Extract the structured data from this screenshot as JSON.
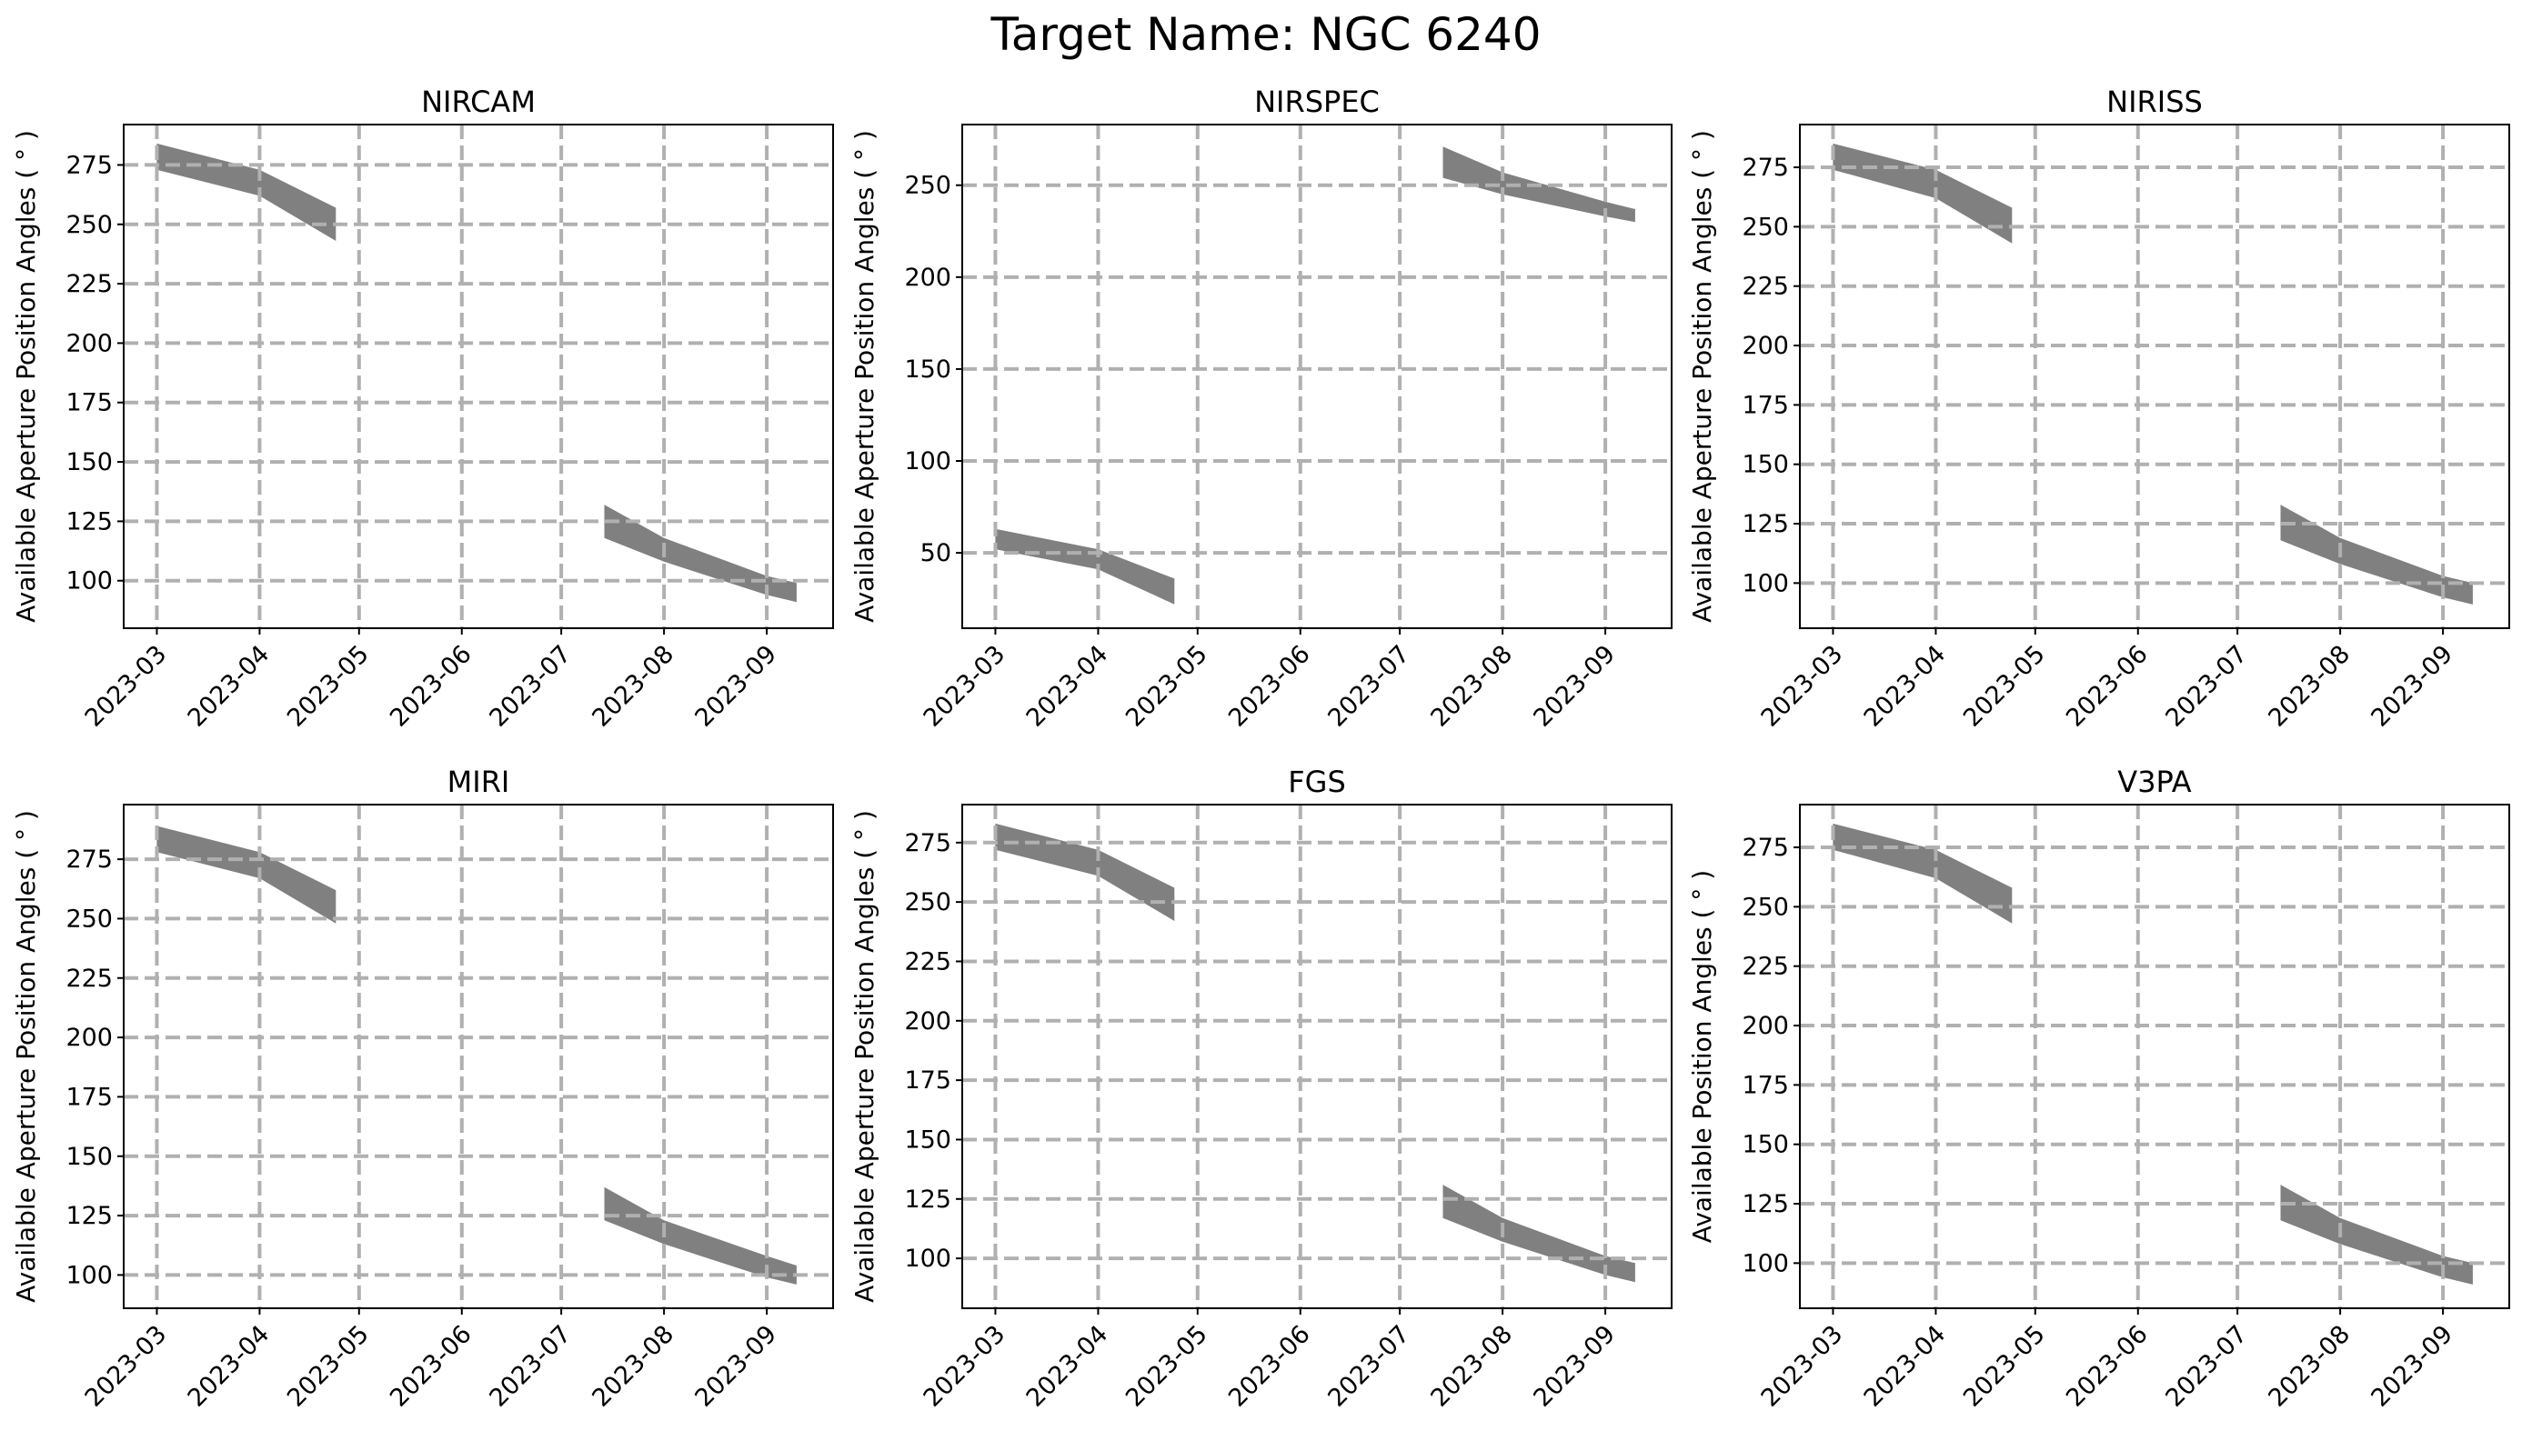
{
  "figure": {
    "title": "Target Name: NGC 6240"
  },
  "style": {
    "band_color": "#808080",
    "grid_color": "#b0b0b0",
    "axis_color": "#000000"
  },
  "chart_data": [
    {
      "type": "area",
      "title": "NIRCAM",
      "xlabel": "",
      "ylabel": "Available Aperture Position Angles ( $^\\circ$ )",
      "xticks": [
        "2023-03",
        "2023-04",
        "2023-05",
        "2023-06",
        "2023-07",
        "2023-08",
        "2023-09"
      ],
      "xlim": [
        "2023-02-19",
        "2023-09-21"
      ],
      "yticks": [
        100,
        125,
        150,
        175,
        200,
        225,
        250,
        275
      ],
      "ylim": [
        80,
        292
      ],
      "grid": true,
      "series": [
        {
          "low": [
            [
              "2023-03-01",
              273
            ],
            [
              "2023-04-01",
              262
            ],
            [
              "2023-04-24",
              243
            ]
          ],
          "high": [
            [
              "2023-03-01",
              284
            ],
            [
              "2023-04-01",
              273
            ],
            [
              "2023-04-24",
              257
            ]
          ]
        },
        {
          "low": [
            [
              "2023-07-14",
              118
            ],
            [
              "2023-08-01",
              108
            ],
            [
              "2023-09-01",
              94
            ],
            [
              "2023-09-10",
              91
            ]
          ],
          "high": [
            [
              "2023-07-14",
              132
            ],
            [
              "2023-08-01",
              118
            ],
            [
              "2023-09-01",
              102
            ],
            [
              "2023-09-10",
              99
            ]
          ]
        }
      ]
    },
    {
      "type": "area",
      "title": "NIRSPEC",
      "xlabel": "",
      "ylabel": "Available Aperture Position Angles ( $^\\circ$ )",
      "xticks": [
        "2023-03",
        "2023-04",
        "2023-05",
        "2023-06",
        "2023-07",
        "2023-08",
        "2023-09"
      ],
      "xlim": [
        "2023-02-19",
        "2023-09-21"
      ],
      "yticks": [
        50,
        100,
        150,
        200,
        250
      ],
      "ylim": [
        9,
        283
      ],
      "grid": true,
      "series": [
        {
          "low": [
            [
              "2023-03-01",
              52
            ],
            [
              "2023-04-01",
              41
            ],
            [
              "2023-04-24",
              22
            ]
          ],
          "high": [
            [
              "2023-03-01",
              63
            ],
            [
              "2023-04-01",
              52
            ],
            [
              "2023-04-24",
              36
            ]
          ]
        },
        {
          "low": [
            [
              "2023-07-14",
              254
            ],
            [
              "2023-08-01",
              245
            ],
            [
              "2023-09-01",
              233
            ],
            [
              "2023-09-10",
              230
            ]
          ],
          "high": [
            [
              "2023-07-14",
              271
            ],
            [
              "2023-08-01",
              257
            ],
            [
              "2023-09-01",
              241
            ],
            [
              "2023-09-10",
              237
            ]
          ]
        }
      ]
    },
    {
      "type": "area",
      "title": "NIRISS",
      "xlabel": "",
      "ylabel": "Available Aperture Position Angles ( $^\\circ$ )",
      "xticks": [
        "2023-03",
        "2023-04",
        "2023-05",
        "2023-06",
        "2023-07",
        "2023-08",
        "2023-09"
      ],
      "xlim": [
        "2023-02-19",
        "2023-09-21"
      ],
      "yticks": [
        100,
        125,
        150,
        175,
        200,
        225,
        250,
        275
      ],
      "ylim": [
        81,
        293
      ],
      "grid": true,
      "series": [
        {
          "low": [
            [
              "2023-03-01",
              274
            ],
            [
              "2023-04-01",
              262
            ],
            [
              "2023-04-24",
              243
            ]
          ],
          "high": [
            [
              "2023-03-01",
              285
            ],
            [
              "2023-04-01",
              274
            ],
            [
              "2023-04-24",
              258
            ]
          ]
        },
        {
          "low": [
            [
              "2023-07-14",
              118
            ],
            [
              "2023-08-01",
              108
            ],
            [
              "2023-09-01",
              94
            ],
            [
              "2023-09-10",
              91
            ]
          ],
          "high": [
            [
              "2023-07-14",
              133
            ],
            [
              "2023-08-01",
              119
            ],
            [
              "2023-09-01",
              103
            ],
            [
              "2023-09-10",
              100
            ]
          ]
        }
      ]
    },
    {
      "type": "area",
      "title": "MIRI",
      "xlabel": "",
      "ylabel": "Available Aperture Position Angles ( $^\\circ$ )",
      "xticks": [
        "2023-03",
        "2023-04",
        "2023-05",
        "2023-06",
        "2023-07",
        "2023-08",
        "2023-09"
      ],
      "xlim": [
        "2023-02-19",
        "2023-09-21"
      ],
      "yticks": [
        100,
        125,
        150,
        175,
        200,
        225,
        250,
        275
      ],
      "ylim": [
        86,
        298
      ],
      "grid": true,
      "series": [
        {
          "low": [
            [
              "2023-03-01",
              278
            ],
            [
              "2023-04-01",
              267
            ],
            [
              "2023-04-24",
              248
            ]
          ],
          "high": [
            [
              "2023-03-01",
              289
            ],
            [
              "2023-04-01",
              278
            ],
            [
              "2023-04-24",
              262
            ]
          ]
        },
        {
          "low": [
            [
              "2023-07-14",
              123
            ],
            [
              "2023-08-01",
              113
            ],
            [
              "2023-09-01",
              99
            ],
            [
              "2023-09-10",
              96
            ]
          ],
          "high": [
            [
              "2023-07-14",
              137
            ],
            [
              "2023-08-01",
              123
            ],
            [
              "2023-09-01",
              108
            ],
            [
              "2023-09-10",
              104
            ]
          ]
        }
      ]
    },
    {
      "type": "area",
      "title": "FGS",
      "xlabel": "",
      "ylabel": "Available Aperture Position Angles ( $^\\circ$ )",
      "xticks": [
        "2023-03",
        "2023-04",
        "2023-05",
        "2023-06",
        "2023-07",
        "2023-08",
        "2023-09"
      ],
      "xlim": [
        "2023-02-19",
        "2023-09-21"
      ],
      "yticks": [
        100,
        125,
        150,
        175,
        200,
        225,
        250,
        275
      ],
      "ylim": [
        79,
        291
      ],
      "grid": true,
      "series": [
        {
          "low": [
            [
              "2023-03-01",
              272
            ],
            [
              "2023-04-01",
              261
            ],
            [
              "2023-04-24",
              242
            ]
          ],
          "high": [
            [
              "2023-03-01",
              283
            ],
            [
              "2023-04-01",
              272
            ],
            [
              "2023-04-24",
              256
            ]
          ]
        },
        {
          "low": [
            [
              "2023-07-14",
              117
            ],
            [
              "2023-08-01",
              107
            ],
            [
              "2023-09-01",
              93
            ],
            [
              "2023-09-10",
              90
            ]
          ],
          "high": [
            [
              "2023-07-14",
              131
            ],
            [
              "2023-08-01",
              117
            ],
            [
              "2023-09-01",
              101
            ],
            [
              "2023-09-10",
              98
            ]
          ]
        }
      ]
    },
    {
      "type": "area",
      "title": "V3PA",
      "xlabel": "",
      "ylabel": "Available Position Angles ( $^\\circ$ )",
      "xticks": [
        "2023-03",
        "2023-04",
        "2023-05",
        "2023-06",
        "2023-07",
        "2023-08",
        "2023-09"
      ],
      "xlim": [
        "2023-02-19",
        "2023-09-21"
      ],
      "yticks": [
        100,
        125,
        150,
        175,
        200,
        225,
        250,
        275
      ],
      "ylim": [
        81,
        293
      ],
      "grid": true,
      "series": [
        {
          "low": [
            [
              "2023-03-01",
              274
            ],
            [
              "2023-04-01",
              262
            ],
            [
              "2023-04-24",
              243
            ]
          ],
          "high": [
            [
              "2023-03-01",
              285
            ],
            [
              "2023-04-01",
              274
            ],
            [
              "2023-04-24",
              258
            ]
          ]
        },
        {
          "low": [
            [
              "2023-07-14",
              118
            ],
            [
              "2023-08-01",
              108
            ],
            [
              "2023-09-01",
              94
            ],
            [
              "2023-09-10",
              91
            ]
          ],
          "high": [
            [
              "2023-07-14",
              133
            ],
            [
              "2023-08-01",
              119
            ],
            [
              "2023-09-01",
              103
            ],
            [
              "2023-09-10",
              100
            ]
          ]
        }
      ]
    }
  ]
}
